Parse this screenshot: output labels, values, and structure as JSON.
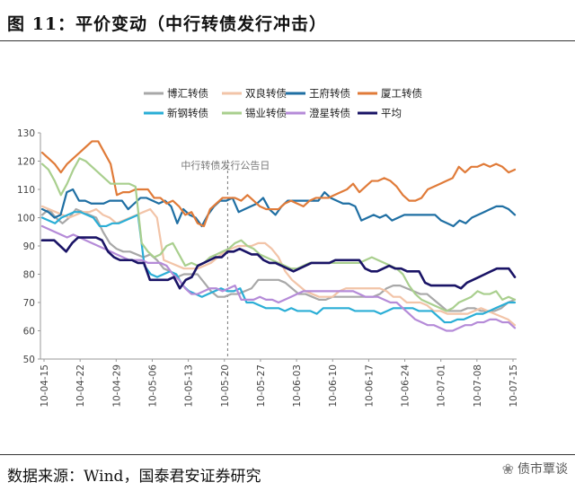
{
  "figure": {
    "title": "图 11：平价变动（中行转债发行冲击）",
    "source": "数据来源：Wind，国泰君安证券研究",
    "watermark": "债市覃谈"
  },
  "chart_data": {
    "type": "line",
    "title": "",
    "xlabel": "",
    "ylabel": "",
    "ylim": [
      50,
      130
    ],
    "yticks": [
      50,
      60,
      70,
      80,
      90,
      100,
      110,
      120,
      130
    ],
    "x_tick_labels": [
      "10-04-15",
      "10-04-22",
      "10-04-29",
      "10-05-06",
      "10-05-13",
      "10-05-20",
      "10-05-27",
      "10-06-03",
      "10-06-10",
      "10-06-17",
      "10-06-24",
      "10-07-01",
      "10-07-08",
      "10-07-15"
    ],
    "grid": false,
    "legend_position": "top",
    "annotation": {
      "text": "中行转债发行公告日",
      "x_index": 31
    },
    "series": [
      {
        "name": "博汇转债",
        "color": "#a8a8a8",
        "values": [
          101,
          103,
          100,
          98,
          100,
          103,
          102,
          101,
          100,
          95,
          91,
          89,
          88,
          88,
          87,
          86,
          87,
          85,
          82,
          81,
          79,
          80,
          80,
          80,
          77,
          74,
          72,
          72,
          73,
          73,
          74,
          75,
          78,
          78,
          78,
          78,
          77,
          75,
          73,
          73,
          72,
          71,
          71,
          72,
          72,
          72,
          72,
          72,
          72,
          72,
          73,
          75,
          76,
          76,
          75,
          74,
          73,
          73,
          71,
          69,
          67,
          67,
          67,
          68,
          68,
          67,
          67,
          67,
          68,
          70,
          71
        ]
      },
      {
        "name": "双良转债",
        "color": "#f2c4a8",
        "values": [
          104,
          103,
          102,
          101,
          100,
          101,
          102,
          102,
          103,
          101,
          100,
          98,
          99,
          100,
          101,
          102,
          103,
          100,
          85,
          84,
          83,
          82,
          82,
          82,
          83,
          84,
          86,
          88,
          89,
          90,
          90,
          90,
          91,
          91,
          89,
          86,
          81,
          78,
          76,
          74,
          73,
          72,
          72,
          72,
          74,
          75,
          75,
          75,
          75,
          75,
          75,
          74,
          72,
          72,
          70,
          70,
          70,
          69,
          67,
          67,
          66,
          66,
          66,
          66,
          67,
          68,
          67,
          66,
          65,
          64,
          62
        ]
      },
      {
        "name": "王府转债",
        "color": "#1f6fa3",
        "values": [
          103,
          102,
          100,
          101,
          109,
          110,
          106,
          106,
          105,
          105,
          105,
          106,
          106,
          106,
          103,
          105,
          107,
          107,
          106,
          105,
          106,
          104,
          98,
          103,
          101,
          100,
          97,
          101,
          104,
          106,
          106,
          107,
          102,
          103,
          104,
          105,
          107,
          103,
          101,
          104,
          106,
          106,
          106,
          106,
          106,
          106,
          109,
          107,
          106,
          105,
          105,
          104,
          99,
          100,
          101,
          100,
          101,
          99,
          100,
          101,
          101,
          101,
          101,
          101,
          101,
          99,
          98,
          97,
          99,
          98,
          100,
          101,
          102,
          103,
          104,
          104,
          103,
          101
        ]
      },
      {
        "name": "厦工转债",
        "color": "#e07b39",
        "values": [
          123,
          121,
          119,
          116,
          119,
          121,
          123,
          125,
          127,
          127,
          123,
          119,
          108,
          109,
          109,
          110,
          110,
          110,
          107,
          107,
          105,
          106,
          104,
          101,
          102,
          98,
          97,
          103,
          105,
          107,
          107,
          107,
          106,
          108,
          106,
          104,
          103,
          103,
          103,
          105,
          106,
          105,
          104,
          106,
          107,
          107,
          107,
          108,
          109,
          110,
          112,
          109,
          111,
          113,
          113,
          114,
          113,
          111,
          108,
          106,
          106,
          107,
          110,
          111,
          112,
          113,
          114,
          118,
          116,
          118,
          118,
          119,
          118,
          119,
          118,
          116,
          117
        ]
      },
      {
        "name": "新钢转债",
        "color": "#2aaed6",
        "values": [
          100,
          99,
          98,
          100,
          101,
          102,
          102,
          101,
          100,
          97,
          97,
          98,
          98,
          99,
          100,
          101,
          83,
          80,
          79,
          80,
          81,
          80,
          76,
          74,
          73,
          72,
          73,
          74,
          75,
          74,
          74,
          75,
          70,
          70,
          69,
          68,
          68,
          68,
          67,
          68,
          67,
          67,
          67,
          66,
          68,
          68,
          68,
          68,
          68,
          67,
          67,
          67,
          67,
          66,
          67,
          68,
          68,
          68,
          68,
          67,
          67,
          67,
          65,
          63,
          63,
          64,
          64,
          65,
          66,
          66,
          67,
          68,
          69,
          70,
          70
        ]
      },
      {
        "name": "锡业转债",
        "color": "#a9cf8e",
        "values": [
          119,
          117,
          113,
          108,
          112,
          117,
          121,
          120,
          118,
          116,
          114,
          112,
          112,
          112,
          112,
          111,
          91,
          88,
          86,
          87,
          90,
          91,
          87,
          83,
          84,
          83,
          84,
          86,
          87,
          88,
          89,
          91,
          92,
          90,
          89,
          87,
          86,
          85,
          84,
          83,
          82,
          82,
          83,
          84,
          84,
          84,
          84,
          84,
          84,
          84,
          84,
          84,
          85,
          86,
          85,
          84,
          83,
          82,
          80,
          76,
          73,
          71,
          70,
          69,
          68,
          67,
          68,
          70,
          71,
          72,
          74,
          73,
          73,
          74,
          71,
          72,
          71
        ]
      },
      {
        "name": "澄星转债",
        "color": "#b58bd8",
        "values": [
          97,
          96,
          95,
          94,
          93,
          94,
          93,
          92,
          91,
          90,
          89,
          88,
          87,
          86,
          85,
          85,
          85,
          84,
          84,
          84,
          83,
          80,
          78,
          75,
          73,
          73,
          74,
          75,
          75,
          74,
          75,
          76,
          71,
          71,
          71,
          72,
          71,
          71,
          70,
          71,
          72,
          73,
          74,
          74,
          74,
          74,
          74,
          74,
          74,
          74,
          74,
          73,
          72,
          72,
          72,
          71,
          70,
          70,
          68,
          66,
          64,
          63,
          62,
          62,
          61,
          60,
          60,
          61,
          62,
          62,
          63,
          63,
          64,
          64,
          63,
          63,
          61
        ]
      },
      {
        "name": "平均",
        "color": "#1a1466",
        "values": [
          92,
          92,
          92,
          90,
          88,
          91,
          93,
          93,
          93,
          93,
          92,
          88,
          86,
          85,
          85,
          85,
          84,
          84,
          78,
          78,
          78,
          78,
          79,
          75,
          78,
          79,
          83,
          84,
          85,
          86,
          86,
          88,
          88,
          89,
          88,
          87,
          87,
          85,
          84,
          84,
          83,
          82,
          81,
          82,
          83,
          84,
          84,
          84,
          84,
          85,
          85,
          85,
          85,
          85,
          82,
          81,
          81,
          82,
          83,
          82,
          82,
          81,
          81,
          81,
          77,
          76,
          76,
          76,
          76,
          76,
          75,
          77,
          78,
          79,
          80,
          81,
          82,
          82,
          82,
          79
        ]
      }
    ]
  },
  "layout_hidden": null
}
